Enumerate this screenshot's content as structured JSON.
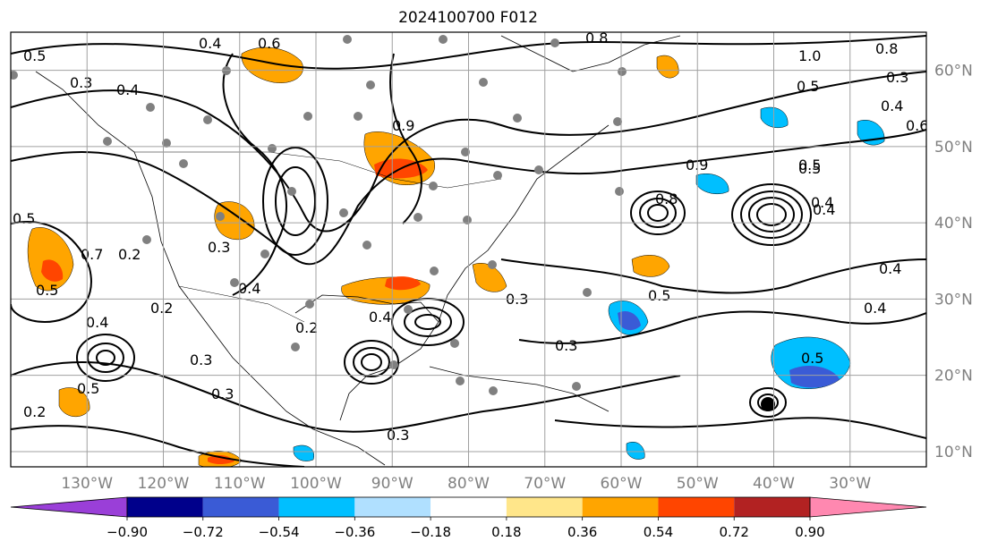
{
  "title": "2024100700 F012",
  "map": {
    "lon_ticks": [
      {
        "value": -130,
        "label": "130°W"
      },
      {
        "value": -120,
        "label": "120°W"
      },
      {
        "value": -110,
        "label": "110°W"
      },
      {
        "value": -100,
        "label": "100°W"
      },
      {
        "value": -90,
        "label": "90°W"
      },
      {
        "value": -80,
        "label": "80°W"
      },
      {
        "value": -70,
        "label": "70°W"
      },
      {
        "value": -60,
        "label": "60°W"
      },
      {
        "value": -50,
        "label": "50°W"
      },
      {
        "value": -40,
        "label": "40°W"
      },
      {
        "value": -30,
        "label": "30°W"
      }
    ],
    "lat_ticks": [
      {
        "value": 60,
        "label": "60°N"
      },
      {
        "value": 50,
        "label": "50°N"
      },
      {
        "value": 40,
        "label": "40°N"
      },
      {
        "value": 30,
        "label": "30°N"
      },
      {
        "value": 20,
        "label": "20°N"
      },
      {
        "value": 10,
        "label": "10°N"
      }
    ],
    "lon_range": [
      -140,
      -20
    ],
    "lat_range": [
      8,
      65
    ],
    "grid": true,
    "tick_label_color": "#808080"
  },
  "colorbar": {
    "ticks": [
      "−0.90",
      "−0.72",
      "−0.54",
      "−0.36",
      "−0.18",
      "0.18",
      "0.36",
      "0.54",
      "0.72",
      "0.90"
    ],
    "colors": [
      "#9a3fd8",
      "#00008b",
      "#3a5bd6",
      "#00bfff",
      "#b0e0ff",
      "#ffffff",
      "#ffe68a",
      "#ffa500",
      "#ff4500",
      "#b22222",
      "#ff88b0"
    ],
    "extend": "both"
  },
  "contour_labels": [
    {
      "text": "0.4"
    },
    {
      "text": "0.6"
    },
    {
      "text": "0.5"
    },
    {
      "text": "0.3"
    },
    {
      "text": "0.4"
    },
    {
      "text": "0.5"
    },
    {
      "text": "0.7"
    },
    {
      "text": "0.2"
    },
    {
      "text": "0.4"
    },
    {
      "text": "0.5"
    },
    {
      "text": "0.3"
    },
    {
      "text": "0.2"
    },
    {
      "text": "0.3"
    },
    {
      "text": "0.4"
    },
    {
      "text": "0.2"
    },
    {
      "text": "0.4"
    },
    {
      "text": "0.3"
    },
    {
      "text": "0.3"
    },
    {
      "text": "0.8"
    },
    {
      "text": "0.5"
    },
    {
      "text": "0.4"
    },
    {
      "text": "0.5"
    },
    {
      "text": "0.4"
    },
    {
      "text": "0.5"
    },
    {
      "text": "1.0"
    },
    {
      "text": "0.8"
    },
    {
      "text": "0.3"
    },
    {
      "text": "0.4"
    },
    {
      "text": "0.5"
    },
    {
      "text": "0.4"
    },
    {
      "text": "0.6"
    },
    {
      "text": "0.4"
    },
    {
      "text": "0.5"
    },
    {
      "text": "0.9"
    },
    {
      "text": "0.8"
    },
    {
      "text": "0.9"
    },
    {
      "text": "0.3"
    },
    {
      "text": "0.5"
    },
    {
      "text": "0.2"
    },
    {
      "text": "0.3"
    }
  ]
}
